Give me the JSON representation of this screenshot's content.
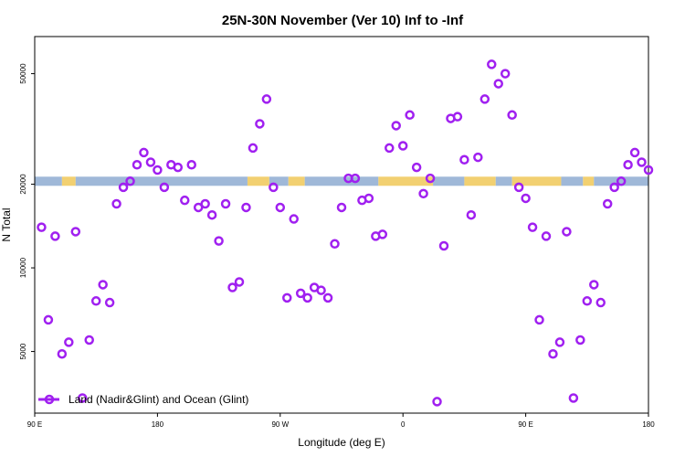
{
  "chart_data": {
    "type": "scatter",
    "title": "25N-30N November (Ver 10)   Inf to -Inf",
    "xlabel": "Longitude (deg E)",
    "ylabel": "N Total",
    "x_tick_labels": [
      "90 E",
      "180",
      "90 W",
      "0",
      "90 E",
      "180"
    ],
    "y_tick_labels": [
      "5000",
      "10000",
      "20000",
      "50000"
    ],
    "y_scale": "log",
    "ylim": [
      3000,
      68000
    ],
    "grid": false,
    "legend_position": "bottom-left",
    "series": [
      {
        "name": "Land (Nadir&Glint) and Ocean (Glint)",
        "color": "#a020f0",
        "marker": "open-circle",
        "points": [
          [
            5,
            14000
          ],
          [
            10,
            6500
          ],
          [
            15,
            13000
          ],
          [
            20,
            4900
          ],
          [
            25,
            5400
          ],
          [
            30,
            13500
          ],
          [
            35,
            3400
          ],
          [
            40,
            5500
          ],
          [
            45,
            7600
          ],
          [
            50,
            8700
          ],
          [
            55,
            7500
          ],
          [
            60,
            17000
          ],
          [
            65,
            19500
          ],
          [
            70,
            20500
          ],
          [
            75,
            23500
          ],
          [
            80,
            26000
          ],
          [
            85,
            24000
          ],
          [
            90,
            22500
          ],
          [
            95,
            19500
          ],
          [
            100,
            23500
          ],
          [
            105,
            23000
          ],
          [
            110,
            17500
          ],
          [
            115,
            23500
          ],
          [
            120,
            16500
          ],
          [
            125,
            17000
          ],
          [
            130,
            15500
          ],
          [
            135,
            12500
          ],
          [
            140,
            17000
          ],
          [
            145,
            8500
          ],
          [
            150,
            8900
          ],
          [
            155,
            16500
          ],
          [
            160,
            27000
          ],
          [
            165,
            33000
          ],
          [
            170,
            40500
          ],
          [
            175,
            19500
          ],
          [
            180,
            16500
          ],
          [
            185,
            7800
          ],
          [
            190,
            15000
          ],
          [
            195,
            8100
          ],
          [
            200,
            7800
          ],
          [
            205,
            8500
          ],
          [
            210,
            8300
          ],
          [
            215,
            7800
          ],
          [
            220,
            12200
          ],
          [
            225,
            16500
          ],
          [
            230,
            21000
          ],
          [
            235,
            21000
          ],
          [
            240,
            17500
          ],
          [
            245,
            17800
          ],
          [
            250,
            13000
          ],
          [
            255,
            13200
          ],
          [
            260,
            27000
          ],
          [
            265,
            32500
          ],
          [
            270,
            27500
          ],
          [
            275,
            35500
          ],
          [
            280,
            23000
          ],
          [
            285,
            18500
          ],
          [
            290,
            21000
          ],
          [
            295,
            3300
          ],
          [
            300,
            12000
          ],
          [
            305,
            34500
          ],
          [
            310,
            35000
          ],
          [
            315,
            24500
          ],
          [
            320,
            15500
          ],
          [
            325,
            25000
          ],
          [
            330,
            40500
          ],
          [
            335,
            54000
          ],
          [
            340,
            46000
          ],
          [
            345,
            50000
          ],
          [
            350,
            35500
          ],
          [
            355,
            19500
          ],
          [
            360,
            17800
          ],
          [
            365,
            14000
          ],
          [
            370,
            6500
          ],
          [
            375,
            13000
          ],
          [
            380,
            4900
          ],
          [
            385,
            5400
          ],
          [
            390,
            13500
          ],
          [
            395,
            3400
          ],
          [
            400,
            5500
          ],
          [
            405,
            7600
          ],
          [
            410,
            8700
          ],
          [
            415,
            7500
          ],
          [
            420,
            17000
          ],
          [
            425,
            19500
          ],
          [
            430,
            20500
          ],
          [
            435,
            23500
          ],
          [
            440,
            26000
          ],
          [
            445,
            24000
          ],
          [
            450,
            22500
          ]
        ]
      }
    ],
    "land_ocean_band": {
      "y": 20500,
      "land_color": "#f2d071",
      "ocean_color": "#9fb8d8",
      "segments": [
        [
          0,
          20,
          "ocean"
        ],
        [
          20,
          30,
          "land"
        ],
        [
          30,
          156,
          "ocean"
        ],
        [
          156,
          172,
          "land"
        ],
        [
          172,
          186,
          "ocean"
        ],
        [
          186,
          198,
          "land"
        ],
        [
          198,
          252,
          "ocean"
        ],
        [
          252,
          292,
          "land"
        ],
        [
          292,
          315,
          "ocean"
        ],
        [
          315,
          338,
          "land"
        ],
        [
          338,
          350,
          "ocean"
        ],
        [
          350,
          386,
          "land"
        ],
        [
          386,
          402,
          "ocean"
        ],
        [
          402,
          410,
          "land"
        ],
        [
          410,
          450,
          "ocean"
        ]
      ]
    }
  }
}
